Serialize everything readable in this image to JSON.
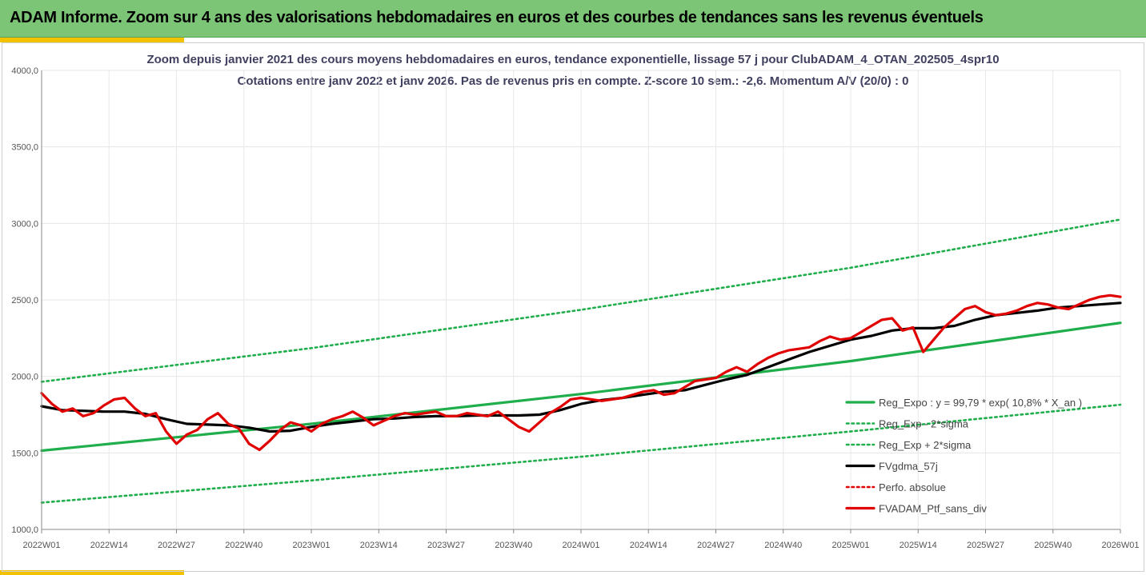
{
  "header": {
    "title": "ADAM Informe. Zoom sur 4 ans des valorisations hebdomadaires en euros et des courbes de tendances sans les revenus éventuels"
  },
  "colors": {
    "header_bg": "#7cc576",
    "reg_expo": "#1fae4b",
    "reg_bands": "#1fae4b",
    "fvgdma": "#000000",
    "perfo": "#e00000",
    "fvadam": "#e00000"
  },
  "chart_data": {
    "type": "line",
    "title": "Zoom depuis janvier 2021 des cours moyens hebdomadaires  en euros, tendance exponentielle, lissage 57 j pour ClubADAM_4_OTAN_202505_4spr10",
    "subtitle": "Cotations entre janv 2022 et janv 2026. Pas de revenus pris en compte. Z-score 10 sem.: -2,6. Momentum A/V (20/0) : 0",
    "xlabel": "",
    "ylabel": "",
    "ylim": [
      1000,
      4000
    ],
    "yticks": [
      "1000,0",
      "1500,0",
      "2000,0",
      "2500,0",
      "3000,0",
      "3500,0",
      "4000,0"
    ],
    "ytick_values": [
      1000,
      1500,
      2000,
      2500,
      3000,
      3500,
      4000
    ],
    "xlim": [
      0,
      208
    ],
    "xticks": [
      "2022W01",
      "2022W14",
      "2022W27",
      "2022W40",
      "2023W01",
      "2023W14",
      "2023W27",
      "2023W40",
      "2024W01",
      "2024W14",
      "2024W27",
      "2024W40",
      "2025W01",
      "2025W14",
      "2025W27",
      "2025W40",
      "2026W01"
    ],
    "xtick_weeks": [
      0,
      13,
      26,
      39,
      52,
      65,
      78,
      91,
      104,
      117,
      130,
      143,
      156,
      169,
      182,
      195,
      208
    ],
    "legend_position": "bottom-right",
    "series": [
      {
        "name": "Reg_Expo : y = 99,79 * exp( 10,8% *  X_an )",
        "style": "solid-green",
        "x": [
          0,
          52,
          104,
          156,
          208
        ],
        "y": [
          1515,
          1690,
          1885,
          2100,
          2350
        ]
      },
      {
        "name": "Reg_Exp - 2*sigma",
        "style": "dotted-green",
        "x": [
          0,
          52,
          104,
          156,
          208
        ],
        "y": [
          1175,
          1320,
          1475,
          1640,
          1815
        ]
      },
      {
        "name": "Reg_Exp + 2*sigma",
        "style": "dotted-green",
        "x": [
          0,
          52,
          104,
          156,
          208
        ],
        "y": [
          1965,
          2185,
          2435,
          2710,
          3025
        ]
      },
      {
        "name": "FVgdma_57j",
        "style": "solid-black",
        "x": [
          0,
          4,
          8,
          12,
          16,
          20,
          24,
          28,
          32,
          36,
          40,
          44,
          48,
          52,
          56,
          60,
          64,
          68,
          72,
          76,
          80,
          84,
          88,
          92,
          96,
          100,
          104,
          108,
          112,
          116,
          120,
          124,
          128,
          132,
          136,
          140,
          144,
          148,
          152,
          156,
          160,
          164,
          168,
          172,
          176,
          180,
          184,
          188,
          192,
          196,
          200,
          204,
          208
        ],
        "y": [
          1805,
          1780,
          1775,
          1770,
          1770,
          1755,
          1720,
          1690,
          1685,
          1680,
          1665,
          1640,
          1645,
          1670,
          1690,
          1705,
          1720,
          1725,
          1735,
          1740,
          1740,
          1745,
          1745,
          1745,
          1750,
          1780,
          1820,
          1845,
          1860,
          1880,
          1900,
          1910,
          1945,
          1980,
          2010,
          2060,
          2110,
          2160,
          2200,
          2240,
          2265,
          2300,
          2315,
          2315,
          2330,
          2370,
          2400,
          2415,
          2430,
          2450,
          2460,
          2470,
          2480
        ]
      },
      {
        "name": "Perfo. absolue",
        "style": "dotted-red",
        "x": [],
        "y": []
      },
      {
        "name": "FVADAM_Ptf_sans_div",
        "style": "solid-red",
        "x": [
          0,
          2,
          4,
          6,
          8,
          10,
          12,
          14,
          16,
          18,
          20,
          22,
          24,
          26,
          28,
          30,
          32,
          34,
          36,
          38,
          40,
          42,
          44,
          46,
          48,
          50,
          52,
          54,
          56,
          58,
          60,
          62,
          64,
          66,
          68,
          70,
          72,
          74,
          76,
          78,
          80,
          82,
          84,
          86,
          88,
          90,
          92,
          94,
          96,
          98,
          100,
          102,
          104,
          106,
          108,
          110,
          112,
          114,
          116,
          118,
          120,
          122,
          124,
          126,
          128,
          130,
          132,
          134,
          136,
          138,
          140,
          142,
          144,
          146,
          148,
          150,
          152,
          154,
          156,
          158,
          160,
          162,
          164,
          166,
          168,
          170,
          172,
          174,
          176,
          178,
          180,
          182,
          184,
          186,
          188,
          190,
          192,
          194,
          196,
          198,
          200,
          202,
          204,
          206,
          208
        ],
        "y": [
          1890,
          1820,
          1770,
          1790,
          1740,
          1760,
          1810,
          1850,
          1860,
          1790,
          1740,
          1760,
          1640,
          1560,
          1620,
          1650,
          1720,
          1760,
          1690,
          1660,
          1560,
          1520,
          1580,
          1650,
          1700,
          1680,
          1640,
          1690,
          1720,
          1740,
          1770,
          1730,
          1680,
          1710,
          1740,
          1760,
          1750,
          1760,
          1770,
          1740,
          1740,
          1760,
          1750,
          1740,
          1770,
          1720,
          1670,
          1640,
          1700,
          1760,
          1800,
          1850,
          1860,
          1850,
          1840,
          1850,
          1860,
          1880,
          1900,
          1910,
          1880,
          1890,
          1930,
          1970,
          1980,
          1990,
          2030,
          2060,
          2030,
          2080,
          2120,
          2150,
          2170,
          2180,
          2190,
          2230,
          2260,
          2240,
          2250,
          2290,
          2330,
          2370,
          2380,
          2300,
          2320,
          2160,
          2240,
          2320,
          2380,
          2440,
          2460,
          2420,
          2400,
          2410,
          2430,
          2460,
          2480,
          2470,
          2450,
          2440,
          2470,
          2500,
          2520,
          2530,
          2520
        ]
      }
    ]
  }
}
